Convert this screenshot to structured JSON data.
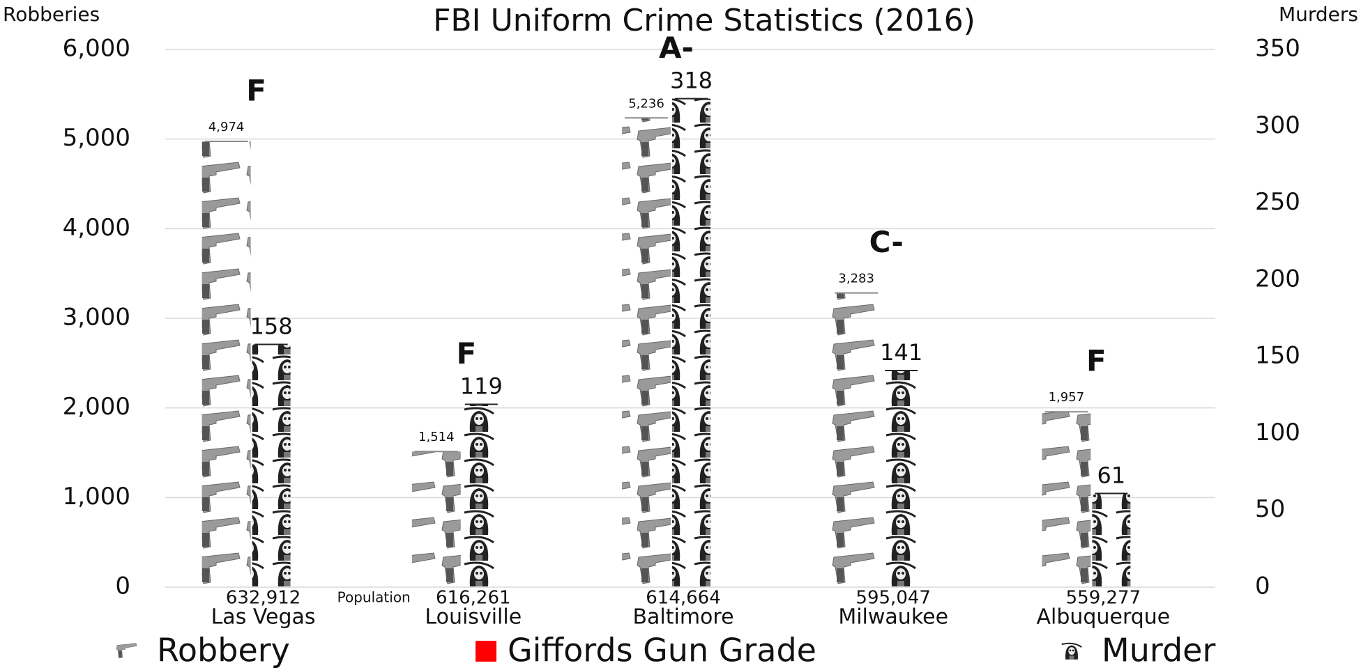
{
  "chart_data": {
    "type": "pictograph",
    "title": "FBI Uniform Crime Statistics (2016)",
    "y_label": "Robberies",
    "y2_label": "Murders",
    "categories": [
      "Las Vegas",
      "Louisville",
      "Baltimore",
      "Milwaukee",
      "Albuquerque"
    ],
    "series": [
      {
        "name": "Robbery",
        "color": "#8a8a8a",
        "values": [
          4974,
          1514,
          5236,
          3283,
          1957
        ],
        "value_labels": [
          "4,974",
          "1,514",
          "5,236",
          "3,283",
          "1,957"
        ]
      },
      {
        "name": "Murder",
        "color": "#222222",
        "axis": "y2",
        "values": [
          158,
          119,
          318,
          141,
          61
        ]
      }
    ],
    "grades": {
      "name": "Giffords Gun Grade",
      "color": "#ff0000",
      "labels": [
        "F",
        "F",
        "A-",
        "C-",
        "F"
      ]
    },
    "population": {
      "label": "Population",
      "values": [
        632912,
        616261,
        614664,
        595047,
        559277
      ],
      "value_labels": [
        "632,912",
        "616,261",
        "614,664",
        "595,047",
        "559,277"
      ]
    },
    "ylim": [
      0,
      6000
    ],
    "yticks": [
      0,
      {
        "value": 1000,
        "label": "1,000"
      },
      {
        "value": 2000,
        "label": "2,000"
      },
      {
        "value": 3000,
        "label": "3,000"
      },
      {
        "value": 4000,
        "label": "4,000"
      },
      {
        "value": 5000,
        "label": "5,000"
      },
      {
        "value": 6000,
        "label": "6,000"
      }
    ],
    "y2lim": [
      0,
      350
    ],
    "y2ticks": [
      0,
      50,
      100,
      150,
      200,
      250,
      300,
      350
    ],
    "grid": true
  }
}
